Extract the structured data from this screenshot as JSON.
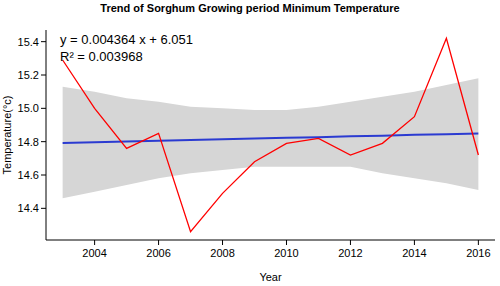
{
  "chart_data": {
    "type": "line",
    "title": "Trend of Sorghum Growing period Minimum Temperature",
    "x_label": "Year",
    "y_label": "Temperature(°c)",
    "annotations": [
      "y = 0.004364 x + 6.051",
      "R² = 0.003968"
    ],
    "x": [
      2003,
      2004,
      2005,
      2006,
      2007,
      2008,
      2009,
      2010,
      2011,
      2012,
      2013,
      2014,
      2015,
      2016
    ],
    "series": [
      {
        "values": [
          15.29,
          15.0,
          14.76,
          14.85,
          14.26,
          14.49,
          14.68,
          14.79,
          14.82,
          14.72,
          14.79,
          14.95,
          15.42,
          14.72
        ],
        "color": "#ff0000",
        "line_style": "solid"
      },
      {
        "values": [
          14.792,
          14.797,
          14.801,
          14.806,
          14.81,
          14.814,
          14.819,
          14.823,
          14.827,
          14.832,
          14.836,
          14.841,
          14.845,
          14.849
        ],
        "color": "#2b3bd1",
        "line_style": "solid"
      }
    ],
    "band": {
      "lower": [
        14.46,
        14.5,
        14.54,
        14.58,
        14.61,
        14.63,
        14.65,
        14.65,
        14.65,
        14.65,
        14.61,
        14.58,
        14.55,
        14.51
      ],
      "upper": [
        15.13,
        15.1,
        15.06,
        15.04,
        15.01,
        15.0,
        14.99,
        14.99,
        15.01,
        15.04,
        15.07,
        15.1,
        15.14,
        15.18
      ],
      "color": "#d6d6d6"
    },
    "xlim": [
      2002.48,
      2016.52
    ],
    "ylim": [
      14.21,
      15.47
    ],
    "xticks": [
      2004,
      2006,
      2008,
      2010,
      2012,
      2014,
      2016
    ],
    "yticks": [
      14.4,
      14.6,
      14.8,
      {
        "value": 15,
        "label": "15.0"
      },
      15.2,
      15.4
    ],
    "grid": false
  }
}
